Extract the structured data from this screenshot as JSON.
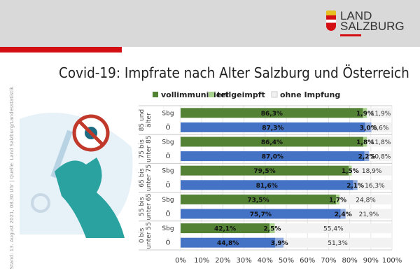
{
  "header": {
    "logo_text": [
      "LAND",
      "SALZBURG"
    ]
  },
  "title": "Covid-19: Impfrate nach Alter Salzburg und Österreich",
  "side_note": "Stand: 13. August 2021, 08.30 Uhr | Quelle: Land Salzburg/Landesstatistik",
  "colors": {
    "sbg": "#548235",
    "oe": "#4472c4",
    "teil_sbg": "#a9d18e",
    "teil_oe": "#8faadc",
    "ohne": "#f2f2f2",
    "brand_red": "#d40f14"
  },
  "chart_data": {
    "type": "bar",
    "orientation": "horizontal",
    "stacked": true,
    "legend": [
      "vollimmunisiert",
      "teilgeimpft",
      "ohne Impfung"
    ],
    "legend_position": "top",
    "xlim": [
      0,
      100
    ],
    "xticks": [
      "0%",
      "10%",
      "20%",
      "30%",
      "40%",
      "50%",
      "60%",
      "70%",
      "80%",
      "90%",
      "100%"
    ],
    "groups": [
      {
        "label": [
          "85 und",
          "älter"
        ],
        "rows": [
          {
            "name": "Sbg",
            "values": [
              86.3,
              1.9,
              11.9
            ],
            "labels": [
              "86,3%",
              "1,9%",
              "11,9%"
            ]
          },
          {
            "name": "Ö",
            "values": [
              87.3,
              3.0,
              9.6
            ],
            "labels": [
              "87,3%",
              "3,0%",
              "9,6%"
            ]
          }
        ]
      },
      {
        "label": [
          "75 bis",
          "unter 85"
        ],
        "rows": [
          {
            "name": "Sbg",
            "values": [
              86.4,
              1.8,
              11.8
            ],
            "labels": [
              "86,4%",
              "1,8%",
              "11,8%"
            ]
          },
          {
            "name": "Ö",
            "values": [
              87.0,
              2.2,
              10.8
            ],
            "labels": [
              "87,0%",
              "2,2%",
              "10,8%"
            ]
          }
        ]
      },
      {
        "label": [
          "65 bis",
          "unter 75"
        ],
        "rows": [
          {
            "name": "Sbg",
            "values": [
              79.5,
              1.5,
              18.9
            ],
            "labels": [
              "79,5%",
              "1,5%",
              "18,9%"
            ]
          },
          {
            "name": "Ö",
            "values": [
              81.6,
              2.1,
              16.3
            ],
            "labels": [
              "81,6%",
              "2,1%",
              "16,3%"
            ]
          }
        ]
      },
      {
        "label": [
          "55 bis",
          "unter 65"
        ],
        "rows": [
          {
            "name": "Sbg",
            "values": [
              73.5,
              1.7,
              24.8
            ],
            "labels": [
              "73,5%",
              "1,7%",
              "24,8%"
            ]
          },
          {
            "name": "Ö",
            "values": [
              75.7,
              2.4,
              21.9
            ],
            "labels": [
              "75,7%",
              "2,4%",
              "21,9%"
            ]
          }
        ]
      },
      {
        "label": [
          "0 bis",
          "unter 55"
        ],
        "rows": [
          {
            "name": "Sbg",
            "values": [
              42.1,
              2.5,
              55.4
            ],
            "labels": [
              "42,1%",
              "2,5%",
              "55,4%"
            ]
          },
          {
            "name": "Ö",
            "values": [
              44.8,
              3.9,
              51.3
            ],
            "labels": [
              "44,8%",
              "3,9%",
              "51,3%"
            ]
          }
        ]
      }
    ]
  }
}
